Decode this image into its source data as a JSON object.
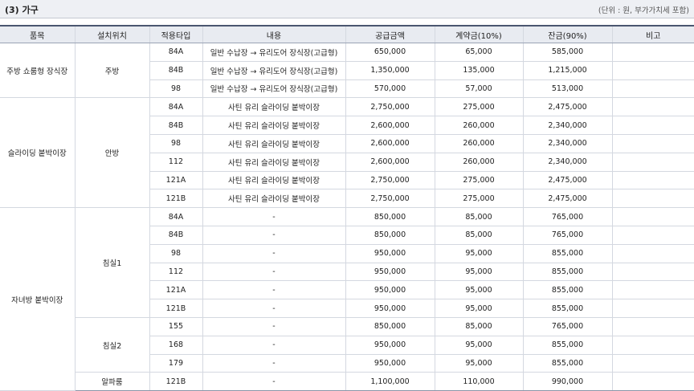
{
  "section": {
    "title": "(3) 가구",
    "unit_note": "(단위 : 원, 부가가치세 포함)"
  },
  "headers": [
    "품목",
    "설치위치",
    "적용타입",
    "내용",
    "공급금액",
    "계약금(10%)",
    "잔금(90%)",
    "비고"
  ],
  "rows": [
    {
      "item": "주방 쇼룸형 장식장",
      "location": "주방",
      "type": "84A",
      "content": "일반 수납장 → 유리도어 장식장(고급형)",
      "supply": "650,000",
      "deposit": "65,000",
      "balance": "585,000",
      "note": ""
    },
    {
      "item": "",
      "location": "",
      "type": "84B",
      "content": "일반 수납장 → 유리도어 장식장(고급형)",
      "supply": "1,350,000",
      "deposit": "135,000",
      "balance": "1,215,000",
      "note": ""
    },
    {
      "item": "",
      "location": "",
      "type": "98",
      "content": "일반 수납장 → 유리도어 장식장(고급형)",
      "supply": "570,000",
      "deposit": "57,000",
      "balance": "513,000",
      "note": ""
    },
    {
      "item": "슬라이딩 붙박이장",
      "location": "안방",
      "type": "84A",
      "content": "사틴 유리 슬라이딩 붙박이장",
      "supply": "2,750,000",
      "deposit": "275,000",
      "balance": "2,475,000",
      "note": ""
    },
    {
      "item": "",
      "location": "",
      "type": "84B",
      "content": "사틴 유리 슬라이딩 붙박이장",
      "supply": "2,600,000",
      "deposit": "260,000",
      "balance": "2,340,000",
      "note": ""
    },
    {
      "item": "",
      "location": "",
      "type": "98",
      "content": "사틴 유리 슬라이딩 붙박이장",
      "supply": "2,600,000",
      "deposit": "260,000",
      "balance": "2,340,000",
      "note": ""
    },
    {
      "item": "",
      "location": "",
      "type": "112",
      "content": "사틴 유리 슬라이딩 붙박이장",
      "supply": "2,600,000",
      "deposit": "260,000",
      "balance": "2,340,000",
      "note": ""
    },
    {
      "item": "",
      "location": "",
      "type": "121A",
      "content": "사틴 유리 슬라이딩 붙박이장",
      "supply": "2,750,000",
      "deposit": "275,000",
      "balance": "2,475,000",
      "note": ""
    },
    {
      "item": "",
      "location": "",
      "type": "121B",
      "content": "사틴 유리 슬라이딩 붙박이장",
      "supply": "2,750,000",
      "deposit": "275,000",
      "balance": "2,475,000",
      "note": ""
    },
    {
      "item": "자녀방 붙박이장",
      "location": "침실1",
      "type": "84A",
      "content": "-",
      "supply": "850,000",
      "deposit": "85,000",
      "balance": "765,000",
      "note": ""
    },
    {
      "item": "",
      "location": "",
      "type": "84B",
      "content": "-",
      "supply": "850,000",
      "deposit": "85,000",
      "balance": "765,000",
      "note": ""
    },
    {
      "item": "",
      "location": "",
      "type": "98",
      "content": "-",
      "supply": "950,000",
      "deposit": "95,000",
      "balance": "855,000",
      "note": ""
    },
    {
      "item": "",
      "location": "",
      "type": "112",
      "content": "-",
      "supply": "950,000",
      "deposit": "95,000",
      "balance": "855,000",
      "note": ""
    },
    {
      "item": "",
      "location": "",
      "type": "121A",
      "content": "-",
      "supply": "950,000",
      "deposit": "95,000",
      "balance": "855,000",
      "note": ""
    },
    {
      "item": "",
      "location": "",
      "type": "121B",
      "content": "-",
      "supply": "950,000",
      "deposit": "95,000",
      "balance": "855,000",
      "note": ""
    },
    {
      "item": "",
      "location": "침실2",
      "type": "155",
      "content": "-",
      "supply": "850,000",
      "deposit": "85,000",
      "balance": "765,000",
      "note": ""
    },
    {
      "item": "",
      "location": "",
      "type": "168",
      "content": "-",
      "supply": "950,000",
      "deposit": "95,000",
      "balance": "855,000",
      "note": ""
    },
    {
      "item": "",
      "location": "",
      "type": "179",
      "content": "-",
      "supply": "950,000",
      "deposit": "95,000",
      "balance": "855,000",
      "note": ""
    },
    {
      "item": "",
      "location": "알파룸",
      "type": "121B",
      "content": "-",
      "supply": "1,100,000",
      "deposit": "110,000",
      "balance": "990,000",
      "note": ""
    }
  ]
}
